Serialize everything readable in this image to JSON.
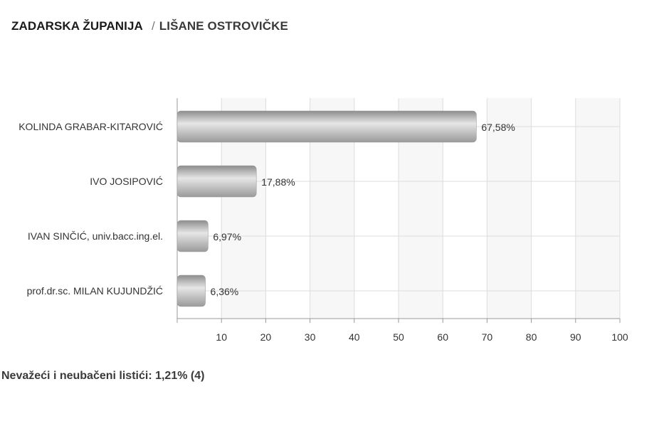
{
  "breadcrumb": {
    "county": "ZADARSKA ŽUPANIJA",
    "separator": "/",
    "place": "LIŠANE OSTROVIČKE"
  },
  "footer": {
    "invalid_ballots": "Nevažeći i neubačeni listići: 1,21% (4)"
  },
  "colors": {
    "bar": "#b3b3b3",
    "bar_light": "#e6e6e6",
    "grid": "#dddddd",
    "band": "#f7f7f7",
    "axis": "#999999",
    "text": "#333333"
  },
  "chart_data": {
    "type": "bar",
    "orientation": "horizontal",
    "categories": [
      "KOLINDA GRABAR-KITAROVIĆ",
      "IVO JOSIPOVIĆ",
      "IVAN SINČIĆ, univ.bacc.ing.el.",
      "prof.dr.sc. MILAN KUJUNDŽIĆ"
    ],
    "values": [
      67.58,
      17.88,
      6.97,
      6.36
    ],
    "value_labels": [
      "67,58%",
      "17,88%",
      "6,97%",
      "6,36%"
    ],
    "xlim": [
      0,
      100
    ],
    "x_ticks": [
      "10",
      "20",
      "30",
      "40",
      "50",
      "60",
      "70",
      "80",
      "90",
      "100"
    ],
    "grid": true,
    "title": "",
    "xlabel": "",
    "ylabel": ""
  }
}
